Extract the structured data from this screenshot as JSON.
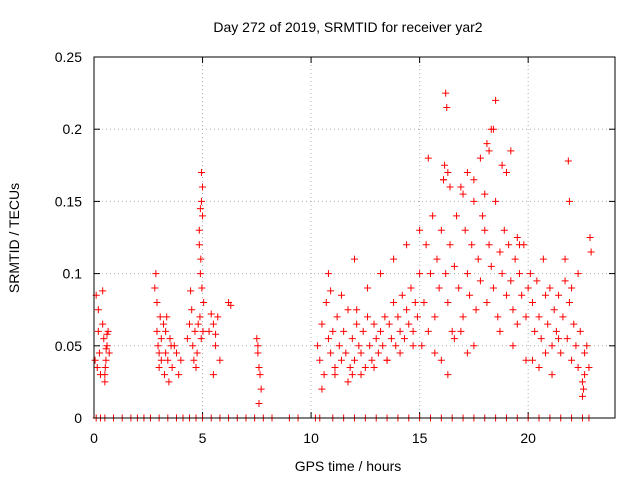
{
  "chart_data": {
    "type": "scatter",
    "title": "Day 272 of 2019, SRMTID for receiver yar2",
    "xlabel": "GPS time / hours",
    "ylabel": "SRMTID / TECUs",
    "xlim": [
      0,
      24
    ],
    "ylim": [
      0,
      0.25
    ],
    "xticks": [
      0,
      5,
      10,
      15,
      20
    ],
    "yticks": [
      0,
      0.05,
      0.1,
      0.15,
      0.2,
      0.25
    ],
    "ytick_labels": [
      "0",
      "0.05",
      "0.1",
      "0.15",
      "0.2",
      "0.25"
    ],
    "grid": true,
    "marker": "+",
    "color": "#ff0000",
    "series": [
      {
        "name": "SRMTID",
        "x": [
          0.05,
          0.1,
          0.15,
          0.2,
          0.25,
          0.3,
          0.4,
          0.45,
          0.5,
          0.55,
          0.6,
          0.65,
          0.7,
          0.5,
          0.52,
          0.56,
          0.6,
          0.2,
          0.4,
          2.8,
          2.85,
          2.9,
          2.95,
          3.0,
          3.05,
          3.1,
          2.9,
          3.0,
          3.1,
          3.2,
          3.25,
          3.3,
          3.4,
          3.5,
          3.6,
          3.7,
          3.8,
          3.9,
          4.0,
          3.3,
          3.35,
          3.45,
          3.55,
          4.3,
          4.4,
          4.45,
          4.5,
          4.55,
          4.6,
          4.65,
          4.7,
          4.75,
          4.8,
          4.85,
          4.9,
          4.95,
          5.0,
          4.85,
          4.9,
          4.95,
          5.0,
          5.05,
          4.92,
          4.97,
          5.02,
          4.88,
          4.94,
          5.3,
          5.4,
          5.5,
          5.6,
          5.7,
          5.8,
          5.5,
          5.6,
          6.2,
          6.3,
          7.5,
          7.55,
          7.6,
          7.65,
          7.7,
          7.6,
          7.55,
          10.3,
          10.4,
          10.5,
          10.6,
          10.7,
          10.8,
          10.9,
          11.0,
          11.1,
          11.2,
          11.3,
          11.4,
          11.5,
          11.6,
          11.7,
          11.8,
          11.9,
          12.0,
          12.1,
          12.2,
          12.3,
          12.4,
          12.5,
          12.6,
          12.7,
          12.8,
          12.9,
          13.0,
          13.1,
          13.2,
          13.3,
          13.4,
          13.5,
          13.6,
          13.7,
          13.8,
          13.9,
          14.0,
          14.1,
          14.2,
          14.3,
          14.4,
          14.5,
          14.6,
          14.7,
          14.8,
          14.9,
          15.0,
          10.5,
          10.8,
          11.1,
          11.4,
          11.7,
          12.0,
          12.3,
          12.6,
          12.9,
          13.2,
          13.5,
          13.8,
          14.1,
          14.4,
          14.7,
          15.0,
          10.9,
          11.9,
          12.1,
          15.2,
          15.3,
          15.4,
          15.5,
          15.6,
          15.7,
          15.8,
          15.9,
          16.0,
          16.1,
          16.2,
          16.3,
          16.4,
          16.5,
          16.6,
          16.7,
          16.8,
          16.9,
          17.0,
          17.1,
          17.2,
          17.3,
          17.4,
          17.5,
          17.6,
          17.7,
          17.8,
          17.9,
          18.0,
          18.1,
          18.2,
          18.3,
          18.4,
          18.5,
          18.6,
          18.7,
          18.8,
          18.9,
          19.0,
          19.1,
          19.2,
          19.3,
          19.4,
          19.5,
          19.6,
          19.7,
          19.8,
          19.9,
          20.0,
          15.1,
          15.4,
          15.7,
          16.0,
          16.3,
          16.6,
          16.9,
          17.2,
          17.5,
          17.8,
          18.1,
          18.4,
          18.7,
          19.0,
          19.3,
          19.6,
          19.9,
          16.2,
          16.25,
          16.1,
          16.15,
          16.3,
          17.0,
          17.5,
          18.0,
          18.2,
          18.5,
          18.8,
          19.2,
          19.5,
          17.2,
          18.3,
          16.4,
          20.1,
          20.2,
          20.3,
          20.4,
          20.5,
          20.6,
          20.7,
          20.8,
          20.9,
          21.0,
          21.1,
          21.2,
          21.3,
          21.4,
          21.5,
          21.6,
          21.7,
          21.8,
          21.9,
          22.0,
          22.1,
          22.2,
          22.3,
          22.4,
          22.5,
          22.6,
          22.7,
          22.8,
          20.2,
          20.5,
          20.8,
          21.1,
          21.4,
          21.7,
          22.0,
          22.3,
          22.6,
          21.85,
          21.9,
          22.85,
          22.9,
          22.5,
          22.55,
          0.1,
          0.3,
          0.5,
          0.9,
          1.3,
          1.7,
          2.0,
          2.3,
          2.6,
          3.0,
          3.4,
          3.8,
          4.1,
          4.4,
          4.7,
          5.0,
          5.4,
          5.8,
          6.2,
          6.6,
          7.0,
          7.4,
          7.8,
          8.2,
          9.0,
          9.4,
          10.2,
          10.4,
          11.0,
          11.5,
          12.0,
          12.5,
          13.0,
          13.5,
          14.0,
          14.5,
          15.0,
          15.5,
          16.0,
          16.5,
          17.0,
          17.5,
          18.0,
          18.5,
          19.0,
          19.5,
          20.0,
          20.5,
          21.0,
          21.5,
          22.0,
          22.5,
          22.8
        ],
        "y": [
          0.04,
          0.085,
          0.035,
          0.06,
          0.045,
          0.03,
          0.088,
          0.055,
          0.03,
          0.04,
          0.05,
          0.06,
          0.045,
          0.025,
          0.035,
          0.048,
          0.058,
          0.075,
          0.065,
          0.09,
          0.1,
          0.08,
          0.05,
          0.045,
          0.07,
          0.04,
          0.06,
          0.035,
          0.055,
          0.065,
          0.03,
          0.045,
          0.04,
          0.055,
          0.035,
          0.05,
          0.045,
          0.03,
          0.04,
          0.06,
          0.07,
          0.025,
          0.05,
          0.055,
          0.065,
          0.088,
          0.075,
          0.05,
          0.04,
          0.06,
          0.035,
          0.045,
          0.065,
          0.12,
          0.145,
          0.17,
          0.16,
          0.13,
          0.1,
          0.15,
          0.14,
          0.08,
          0.11,
          0.09,
          0.06,
          0.07,
          0.055,
          0.06,
          0.072,
          0.065,
          0.05,
          0.07,
          0.04,
          0.03,
          0.058,
          0.08,
          0.078,
          0.055,
          0.045,
          0.035,
          0.03,
          0.02,
          0.01,
          0.05,
          0.05,
          0.04,
          0.065,
          0.03,
          0.08,
          0.055,
          0.045,
          0.06,
          0.035,
          0.07,
          0.05,
          0.04,
          0.06,
          0.045,
          0.075,
          0.035,
          0.055,
          0.04,
          0.065,
          0.05,
          0.045,
          0.06,
          0.035,
          0.07,
          0.05,
          0.04,
          0.065,
          0.055,
          0.045,
          0.06,
          0.05,
          0.07,
          0.04,
          0.065,
          0.055,
          0.08,
          0.05,
          0.07,
          0.06,
          0.085,
          0.055,
          0.075,
          0.065,
          0.09,
          0.06,
          0.08,
          0.07,
          0.1,
          0.02,
          0.1,
          0.03,
          0.085,
          0.025,
          0.11,
          0.03,
          0.09,
          0.035,
          0.1,
          0.04,
          0.11,
          0.045,
          0.12,
          0.05,
          0.13,
          0.088,
          0.03,
          0.075,
          0.08,
          0.12,
          0.06,
          0.1,
          0.14,
          0.07,
          0.11,
          0.09,
          0.13,
          0.165,
          0.1,
          0.08,
          0.12,
          0.06,
          0.105,
          0.14,
          0.09,
          0.16,
          0.07,
          0.13,
          0.1,
          0.085,
          0.12,
          0.15,
          0.075,
          0.11,
          0.095,
          0.14,
          0.13,
          0.08,
          0.12,
          0.105,
          0.09,
          0.15,
          0.07,
          0.115,
          0.1,
          0.13,
          0.085,
          0.12,
          0.095,
          0.075,
          0.11,
          0.065,
          0.1,
          0.085,
          0.12,
          0.07,
          0.09,
          0.05,
          0.18,
          0.045,
          0.04,
          0.17,
          0.055,
          0.06,
          0.045,
          0.05,
          0.18,
          0.19,
          0.2,
          0.06,
          0.17,
          0.05,
          0.12,
          0.04,
          0.225,
          0.215,
          0.165,
          0.175,
          0.03,
          0.155,
          0.165,
          0.155,
          0.185,
          0.22,
          0.175,
          0.185,
          0.125,
          0.17,
          0.2,
          0.16,
          0.1,
          0.08,
          0.06,
          0.095,
          0.07,
          0.055,
          0.11,
          0.085,
          0.065,
          0.09,
          0.05,
          0.075,
          0.06,
          0.085,
          0.045,
          0.07,
          0.095,
          0.055,
          0.08,
          0.04,
          0.065,
          0.05,
          0.035,
          0.06,
          0.025,
          0.045,
          0.05,
          0.035,
          0.04,
          0.035,
          0.045,
          0.03,
          0.055,
          0.11,
          0.09,
          0.1,
          0.03,
          0.178,
          0.15,
          0.125,
          0.115,
          0.015,
          0.02,
          0,
          0,
          0,
          0,
          0,
          0,
          0,
          0,
          0,
          0,
          0,
          0,
          0,
          0,
          0,
          0,
          0,
          0,
          0,
          0,
          0,
          0,
          0,
          0,
          0,
          0,
          0,
          0,
          0,
          0,
          0,
          0,
          0,
          0,
          0,
          0,
          0,
          0,
          0,
          0,
          0,
          0,
          0,
          0,
          0,
          0,
          0,
          0,
          0,
          0,
          0,
          0,
          0
        ]
      }
    ]
  }
}
